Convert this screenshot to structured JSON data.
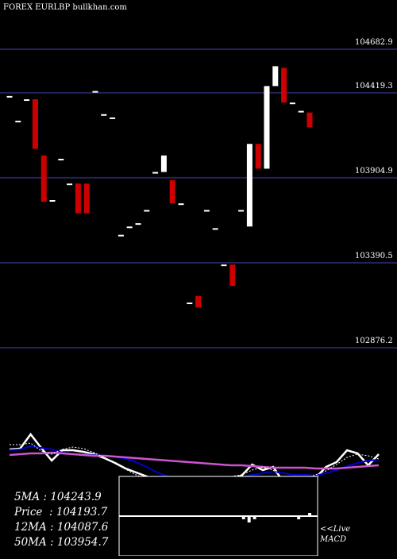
{
  "header": {
    "title": "FOREX  EURLBP bullkhan.com"
  },
  "colors": {
    "background": "#000000",
    "gridline": "#22225a",
    "bull": "#ffffff",
    "bear": "#cc0000",
    "price_line": "#ffffff",
    "ma_fast": "#0000cc",
    "ma_slow": "#cc55cc",
    "macd_box": "#000000"
  },
  "stats": [
    {
      "label": "5MA",
      "value": "104243.9"
    },
    {
      "label": "Price",
      "value": "104193.7"
    },
    {
      "label": "12MA",
      "value": "104087.6"
    },
    {
      "label": "50MA",
      "value": "103954.7"
    }
  ],
  "macd_label": {
    "line1": "<<Live",
    "line2": "MACD"
  },
  "chart_data": [
    {
      "type": "candlestick",
      "title": "FOREX  EURLBP bullkhan.com",
      "ylim": [
        102800,
        104750
      ],
      "price_levels": [
        "104682.9",
        "104419.3",
        "103904.9",
        "103390.5",
        "102876.2"
      ],
      "grid": true,
      "bars": [
        {
          "o": 104400,
          "c": 104400
        },
        {
          "o": 104250,
          "c": 104250
        },
        {
          "o": 104380,
          "c": 104380
        },
        {
          "o": 104380,
          "c": 104080
        },
        {
          "o": 104040,
          "c": 103760
        },
        {
          "o": 103770,
          "c": 103770
        },
        {
          "o": 104020,
          "c": 104020
        },
        {
          "o": 103870,
          "c": 103870
        },
        {
          "o": 103870,
          "c": 103690
        },
        {
          "o": 103870,
          "c": 103690
        },
        {
          "o": 104430,
          "c": 104430
        },
        {
          "o": 104290,
          "c": 104290
        },
        {
          "o": 104270,
          "c": 104270
        },
        {
          "o": 103560,
          "c": 103560
        },
        {
          "o": 103610,
          "c": 103610
        },
        {
          "o": 103630,
          "c": 103630
        },
        {
          "o": 103710,
          "c": 103710
        },
        {
          "o": 103940,
          "c": 103940
        },
        {
          "o": 103940,
          "c": 104040
        },
        {
          "o": 103890,
          "c": 103750
        },
        {
          "o": 103750,
          "c": 103750
        },
        {
          "o": 103150,
          "c": 103150
        },
        {
          "o": 103190,
          "c": 103120
        },
        {
          "o": 103710,
          "c": 103710
        },
        {
          "o": 103600,
          "c": 103600
        },
        {
          "o": 103380,
          "c": 103380
        },
        {
          "o": 103380,
          "c": 103250
        },
        {
          "o": 103710,
          "c": 103710
        },
        {
          "o": 103610,
          "c": 104110
        },
        {
          "o": 104110,
          "c": 103960
        },
        {
          "o": 103960,
          "c": 104460
        },
        {
          "o": 104460,
          "c": 104580
        },
        {
          "o": 104570,
          "c": 104360
        },
        {
          "o": 104360,
          "c": 104360
        },
        {
          "o": 104310,
          "c": 104310
        },
        {
          "o": 104300,
          "c": 104210
        }
      ]
    },
    {
      "type": "line",
      "series": [
        {
          "role": "price",
          "values": [
            66,
            65,
            47,
            64,
            80,
            67,
            67,
            69,
            72,
            77,
            83,
            90,
            95,
            100,
            108,
            110,
            112,
            109,
            107,
            106,
            108,
            103,
            99,
            85,
            92,
            88,
            108,
            107,
            103,
            102,
            88,
            82,
            67,
            71,
            86,
            72
          ]
        },
        {
          "role": "ma_fast",
          "values": [
            67,
            66,
            62,
            64,
            66,
            70,
            72,
            72,
            73,
            74,
            75,
            78,
            82,
            88,
            95,
            100,
            104,
            106,
            108,
            108,
            106,
            104,
            101,
            98,
            96,
            94,
            96,
            98,
            98,
            99,
            96,
            92,
            87,
            83,
            80,
            79
          ]
        },
        {
          "role": "ma_slow",
          "values": [
            73,
            72,
            71,
            71,
            70,
            71,
            72,
            73,
            74,
            74,
            75,
            76,
            77,
            78,
            79,
            80,
            81,
            82,
            83,
            84,
            85,
            86,
            86,
            87,
            88,
            89,
            89,
            89,
            89,
            90,
            90,
            90,
            89,
            88,
            87,
            86
          ]
        },
        {
          "role": "ma_dotted",
          "values": [
            60,
            60,
            58,
            68,
            72,
            66,
            63,
            65,
            70,
            76,
            84,
            91,
            98,
            104,
            110,
            108,
            105,
            104,
            104,
            104,
            102,
            100,
            98,
            92,
            88,
            92,
            104,
            106,
            104,
            98,
            93,
            85,
            76,
            72,
            74,
            78
          ]
        }
      ]
    },
    {
      "type": "bar",
      "title": "MACD",
      "values": [
        0,
        0,
        0,
        0,
        0,
        0,
        0,
        0,
        0,
        0,
        0,
        0,
        0,
        0,
        0,
        0,
        0,
        0,
        0,
        0,
        0,
        0,
        -1,
        -2,
        -1,
        0,
        0,
        0,
        0,
        0,
        0,
        0,
        -1,
        0,
        1,
        0
      ]
    }
  ]
}
